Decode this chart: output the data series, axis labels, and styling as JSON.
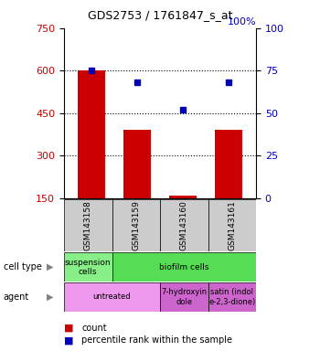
{
  "title": "GDS2753 / 1761847_s_at",
  "samples": [
    "GSM143158",
    "GSM143159",
    "GSM143160",
    "GSM143161"
  ],
  "counts": [
    601,
    390,
    158,
    390
  ],
  "percentile_ranks": [
    75,
    68,
    52,
    68
  ],
  "ylim_left": [
    150,
    750
  ],
  "ylim_right": [
    0,
    100
  ],
  "yticks_left": [
    150,
    300,
    450,
    600,
    750
  ],
  "yticks_right": [
    0,
    25,
    50,
    75,
    100
  ],
  "bar_color": "#cc0000",
  "dot_color": "#0000bb",
  "bar_bottom": 150,
  "cell_types": [
    {
      "label": "suspension\ncells",
      "span": [
        0,
        1
      ],
      "color": "#88ee88"
    },
    {
      "label": "biofilm cells",
      "span": [
        1,
        4
      ],
      "color": "#55dd55"
    }
  ],
  "agents": [
    {
      "label": "untreated",
      "span": [
        0,
        2
      ],
      "color": "#ee99ee"
    },
    {
      "label": "7-hydroxyin\ndole",
      "span": [
        2,
        3
      ],
      "color": "#cc66cc"
    },
    {
      "label": "satin (indol\ne-2,3-dione)",
      "span": [
        3,
        4
      ],
      "color": "#cc66cc"
    }
  ],
  "left_label_color": "#cc0000",
  "right_label_color": "#0000bb",
  "grid_yticks": [
    300,
    450,
    600
  ],
  "bar_width": 0.6,
  "sample_box_color": "#cccccc"
}
